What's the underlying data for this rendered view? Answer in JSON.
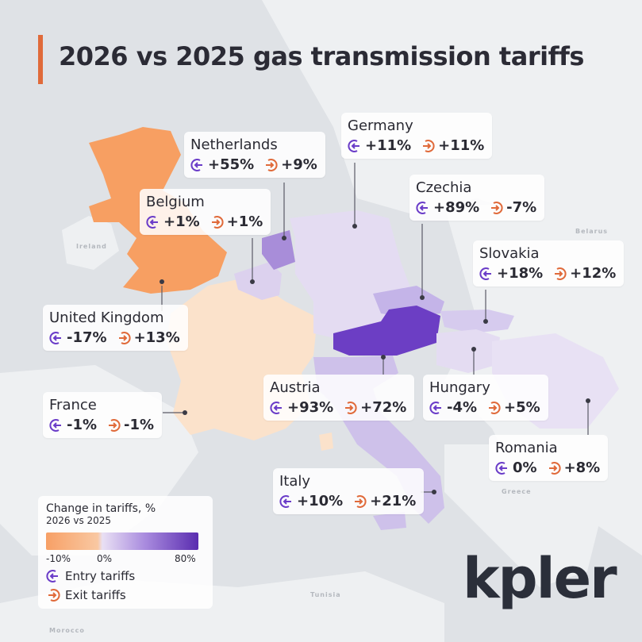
{
  "title": "2026 vs 2025 gas transmission tariffs",
  "colors": {
    "accent": "#e06a3a",
    "entry_icon": "#6a3cc8",
    "exit_icon": "#e06a3a"
  },
  "map_labels": [
    "Ireland",
    "Belarus",
    "Greece",
    "Tunisia",
    "Morocco"
  ],
  "countries": [
    {
      "name": "Netherlands",
      "entry": "+55%",
      "exit": "+9%"
    },
    {
      "name": "Germany",
      "entry": "+11%",
      "exit": "+11%"
    },
    {
      "name": "Belgium",
      "entry": "+1%",
      "exit": "+1%"
    },
    {
      "name": "Czechia",
      "entry": "+89%",
      "exit": "-7%"
    },
    {
      "name": "Slovakia",
      "entry": "+18%",
      "exit": "+12%"
    },
    {
      "name": "United Kingdom",
      "entry": "-17%",
      "exit": "+13%"
    },
    {
      "name": "Austria",
      "entry": "+93%",
      "exit": "+72%"
    },
    {
      "name": "Hungary",
      "entry": "-4%",
      "exit": "+5%"
    },
    {
      "name": "France",
      "entry": "-1%",
      "exit": "-1%"
    },
    {
      "name": "Romania",
      "entry": "0%",
      "exit": "+8%"
    },
    {
      "name": "Italy",
      "entry": "+10%",
      "exit": "+21%"
    }
  ],
  "legend": {
    "title": "Change in tariffs, %",
    "subtitle": "2026 vs 2025",
    "ticks": [
      "-10%",
      "0%",
      "80%"
    ],
    "entry_label": "Entry tariffs",
    "exit_label": "Exit tariffs"
  },
  "logo": "kpler"
}
